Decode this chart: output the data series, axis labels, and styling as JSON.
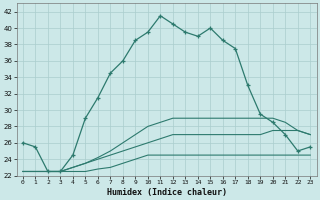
{
  "xlabel": "Humidex (Indice chaleur)",
  "x": [
    0,
    1,
    2,
    3,
    4,
    5,
    6,
    7,
    8,
    9,
    10,
    11,
    12,
    13,
    14,
    15,
    16,
    17,
    18,
    19,
    20,
    21,
    22,
    23
  ],
  "y_main": [
    26,
    25.5,
    22.5,
    22.5,
    24.5,
    29,
    31.5,
    34.5,
    36,
    38.5,
    39.5,
    41.5,
    40.5,
    39.5,
    39,
    40,
    38.5,
    37.5,
    33,
    29.5,
    28.5,
    27,
    25,
    25.5
  ],
  "y_line1": [
    22.5,
    22.5,
    22.5,
    22.5,
    22.5,
    22.5,
    22.8,
    23.0,
    23.5,
    24.0,
    24.5,
    24.5,
    24.5,
    24.5,
    24.5,
    24.5,
    24.5,
    24.5,
    24.5,
    24.5,
    24.5,
    24.5,
    24.5,
    24.5
  ],
  "y_line2": [
    22.5,
    22.5,
    22.5,
    22.5,
    23.0,
    23.5,
    24.0,
    24.5,
    25.0,
    25.5,
    26.0,
    26.5,
    27.0,
    27.0,
    27.0,
    27.0,
    27.0,
    27.0,
    27.0,
    27.0,
    27.5,
    27.5,
    27.5,
    27.0
  ],
  "y_line3": [
    22.5,
    22.5,
    22.5,
    22.5,
    23.0,
    23.5,
    24.2,
    25.0,
    26.0,
    27.0,
    28.0,
    28.5,
    29.0,
    29.0,
    29.0,
    29.0,
    29.0,
    29.0,
    29.0,
    29.0,
    29.0,
    28.5,
    27.5,
    27.0
  ],
  "line_color": "#2d7a6e",
  "bg_color": "#cce8e8",
  "grid_color": "#aacece",
  "ylim": [
    22,
    43
  ],
  "xlim": [
    -0.5,
    23.5
  ],
  "yticks": [
    22,
    24,
    26,
    28,
    30,
    32,
    34,
    36,
    38,
    40,
    42
  ],
  "xticks": [
    0,
    1,
    2,
    3,
    4,
    5,
    6,
    7,
    8,
    9,
    10,
    11,
    12,
    13,
    14,
    15,
    16,
    17,
    18,
    19,
    20,
    21,
    22,
    23
  ]
}
